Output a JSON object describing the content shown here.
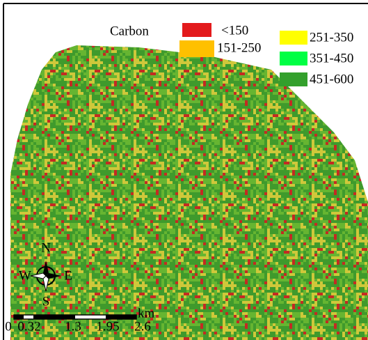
{
  "legend": {
    "title": "Carbon",
    "items": [
      {
        "label": "<150",
        "color": "#e31a1c"
      },
      {
        "label": "151-250",
        "color": "#ffc000"
      },
      {
        "label": "251-350",
        "color": "#ffff00"
      },
      {
        "label": "351-450",
        "color": "#00ff44"
      },
      {
        "label": "451-600",
        "color": "#33a02c"
      }
    ]
  },
  "compass": {
    "n": "N",
    "s": "S",
    "e": "E",
    "w": "W"
  },
  "scale_bar": {
    "unit": "km",
    "labels": [
      "0",
      "0.32",
      "1.3",
      "1.95",
      "2.6"
    ]
  }
}
